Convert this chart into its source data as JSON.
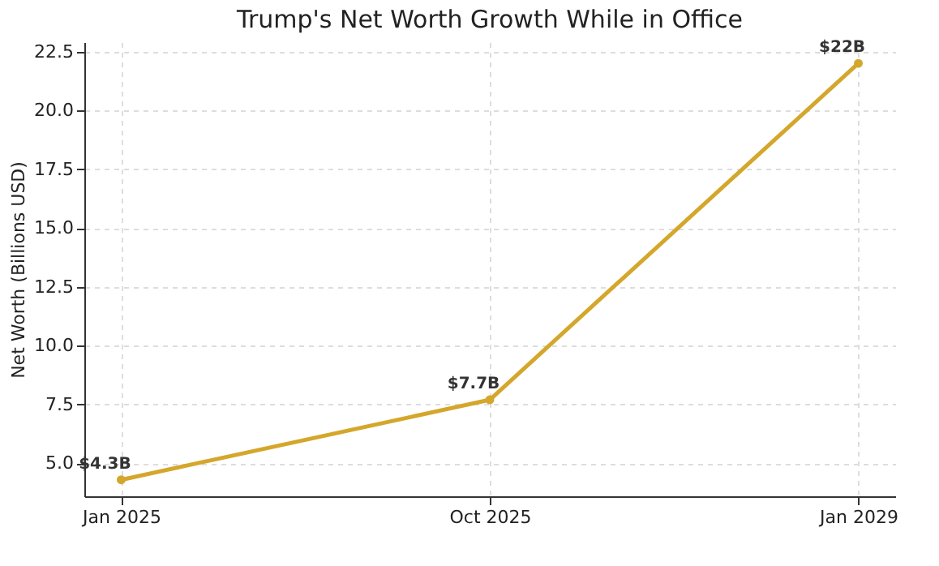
{
  "chart_data": {
    "type": "line",
    "title": "Trump's Net Worth Growth While in Office",
    "ylabel": "Net Worth (Billions USD)",
    "categories": [
      "Jan 2025",
      "Oct 2025",
      "Jan 2029"
    ],
    "series": [
      {
        "color": "#d4a72c",
        "values": [
          4.3,
          7.7,
          22
        ],
        "value_labels": [
          "$4.3B",
          "$7.7B",
          "$22B"
        ]
      }
    ],
    "ylim": [
      3.6,
      22.9
    ],
    "yticks": [
      {
        "value": 5,
        "label": "5.0"
      },
      {
        "value": 7.5,
        "label": "7.5"
      },
      {
        "value": 10,
        "label": "10.0"
      },
      {
        "value": 12.5,
        "label": "12.5"
      },
      {
        "value": 15,
        "label": "15.0"
      },
      {
        "value": 17.5,
        "label": "17.5"
      },
      {
        "value": 20,
        "label": "20.0"
      },
      {
        "value": 22.5,
        "label": "22.5"
      }
    ],
    "grid": true,
    "marker": "circle",
    "line_style": "solid"
  }
}
